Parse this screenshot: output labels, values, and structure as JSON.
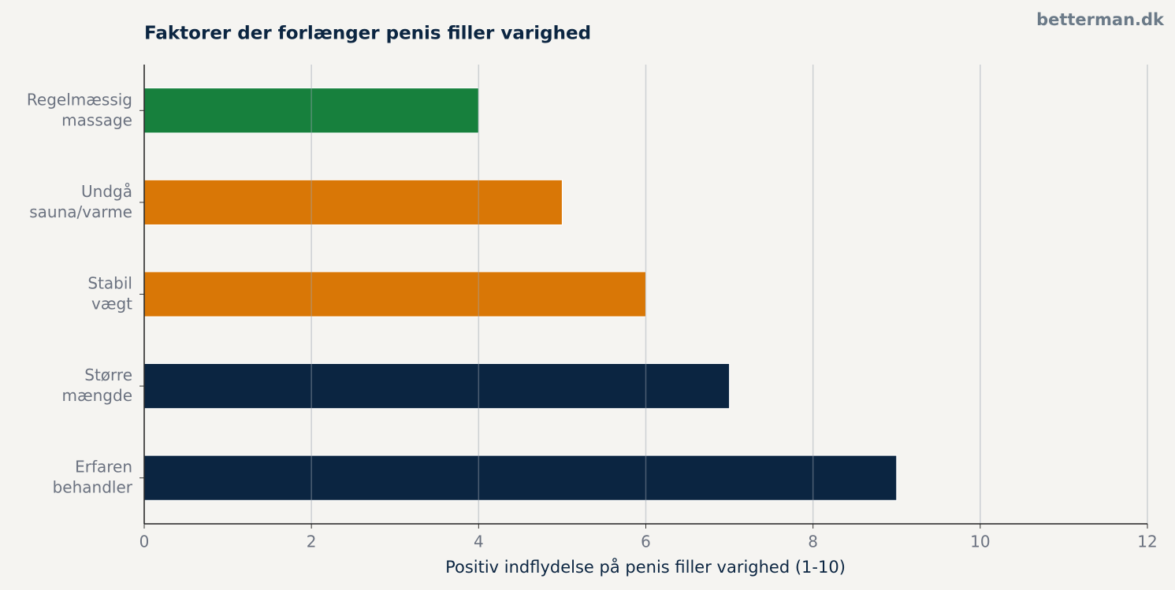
{
  "chart_data": {
    "type": "barh",
    "title": "Faktorer der forlænger penis filler varighed",
    "source": "betterman.dk",
    "xlabel": "Positiv indflydelse på penis filler varighed (1-10)",
    "categories": [
      "Regelmæssig\nmassage",
      "Undgå\nsauna/varme",
      "Stabil\nvægt",
      "Større\nmængde",
      "Erfaren\nbehandler"
    ],
    "values": [
      4,
      5,
      6,
      7,
      9
    ],
    "colors": [
      "#17803d",
      "#d97706",
      "#d97706",
      "#0b2541",
      "#0b2541"
    ],
    "xlim": [
      0,
      12
    ],
    "xticks": [
      0,
      2,
      4,
      6,
      8,
      10,
      12
    ],
    "grid": true
  }
}
